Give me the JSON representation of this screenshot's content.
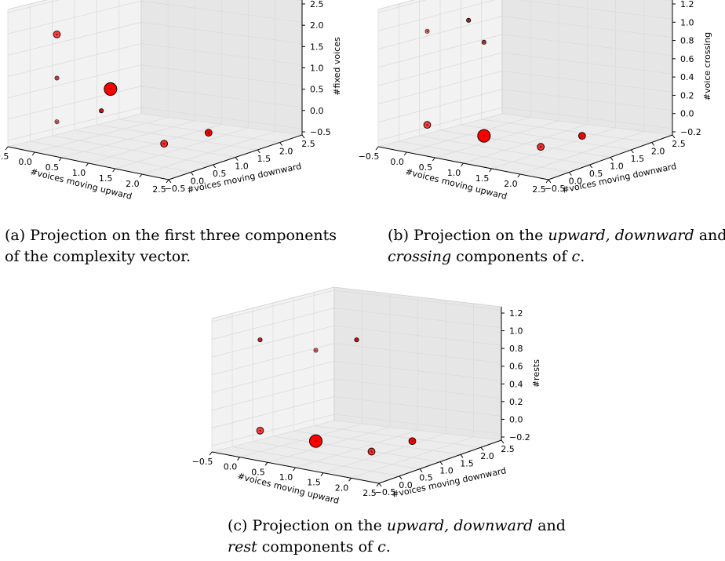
{
  "chart_data": [
    {
      "id": "a",
      "type": "scatter",
      "title": "",
      "xlabel": "#voices moving upward",
      "ylabel": "#voices moving downward",
      "zlabel": "#fixed voices",
      "x_ticks": [
        "−0.5",
        "0.0",
        "0.5",
        "1.0",
        "1.5",
        "2.0",
        "2.5"
      ],
      "y_ticks": [
        "−0.5",
        "0.0",
        "0.5",
        "1.0",
        "1.5",
        "2.0",
        "2.5"
      ],
      "z_ticks": [
        "2.5",
        "2.0",
        "1.5",
        "1.0",
        "0.5",
        "0.0",
        "−0.5"
      ],
      "zlim": [
        -0.5,
        2.5
      ],
      "grid": true,
      "points": [
        {
          "x": 0,
          "y": 0,
          "z": 2,
          "size": "medium",
          "alpha": 0.75
        },
        {
          "x": 1,
          "y": 0,
          "z": 1,
          "size": "large",
          "alpha": 0.45
        },
        {
          "x": 1,
          "y": 0,
          "z": 1,
          "size": "large",
          "alpha": 1.0
        },
        {
          "x": 0,
          "y": 0,
          "z": 1,
          "size": "small",
          "alpha": 0.6
        },
        {
          "x": 0,
          "y": 0,
          "z": 0,
          "size": "small",
          "alpha": 0.5
        },
        {
          "x": 0,
          "y": 1,
          "z": 0,
          "size": "small",
          "alpha": 0.9
        },
        {
          "x": 2,
          "y": 0,
          "z": 0,
          "size": "medium",
          "alpha": 0.35
        },
        {
          "x": 2,
          "y": 0,
          "z": 0,
          "size": "medium",
          "alpha": 0.7
        },
        {
          "x": 2,
          "y": 1,
          "z": 0,
          "size": "medium",
          "alpha": 1.0
        }
      ],
      "caption": [
        [
          {
            "t": "(a) Projection on the first three components",
            "i": false
          }
        ],
        [
          {
            "t": "of the complexity vector.",
            "i": false
          }
        ]
      ]
    },
    {
      "id": "b",
      "type": "scatter",
      "title": "",
      "xlabel": "#voices moving upward",
      "ylabel": "#voices moving downward",
      "zlabel": "#voice crossing",
      "x_ticks": [
        "−0.5",
        "0.0",
        "0.5",
        "1.0",
        "1.5",
        "2.0",
        "2.5"
      ],
      "y_ticks": [
        "−0.5",
        "0.0",
        "0.5",
        "1.0",
        "1.5",
        "2.0",
        "2.5"
      ],
      "z_ticks": [
        "1.2",
        "1.0",
        "0.8",
        "0.6",
        "0.4",
        "0.2",
        "0.0",
        "−0.2"
      ],
      "zlim": [
        -0.2,
        1.2
      ],
      "grid": true,
      "points": [
        {
          "x": 0,
          "y": 0,
          "z": 1,
          "size": "small",
          "alpha": 0.5
        },
        {
          "x": 0,
          "y": 1,
          "z": 1,
          "size": "small",
          "alpha": 0.9
        },
        {
          "x": 1,
          "y": 0,
          "z": 1,
          "size": "small",
          "alpha": 0.75
        },
        {
          "x": 0,
          "y": 0,
          "z": 0,
          "size": "medium",
          "alpha": 0.75
        },
        {
          "x": 1,
          "y": 0,
          "z": 0,
          "size": "large",
          "alpha": 0.45
        },
        {
          "x": 1,
          "y": 0,
          "z": 0,
          "size": "large",
          "alpha": 1.0
        },
        {
          "x": 2,
          "y": 0,
          "z": 0,
          "size": "medium",
          "alpha": 0.35
        },
        {
          "x": 2,
          "y": 0,
          "z": 0,
          "size": "medium",
          "alpha": 0.7
        },
        {
          "x": 2,
          "y": 1,
          "z": 0,
          "size": "medium",
          "alpha": 1.0
        }
      ],
      "caption": [
        [
          {
            "t": "(b) Projection on the ",
            "i": false
          },
          {
            "t": "upward, downward",
            "i": true
          },
          {
            "t": " and",
            "i": false
          }
        ],
        [
          {
            "t": "crossing",
            "i": true
          },
          {
            "t": " components of ",
            "i": false
          },
          {
            "t": "c",
            "i": true
          },
          {
            "t": ".",
            "i": false
          }
        ]
      ]
    },
    {
      "id": "c",
      "type": "scatter",
      "title": "",
      "xlabel": "#voices moving upward",
      "ylabel": "#voices moving downward",
      "zlabel": "#rests",
      "x_ticks": [
        "−0.5",
        "0.0",
        "0.5",
        "1.0",
        "1.5",
        "2.0",
        "2.5"
      ],
      "y_ticks": [
        "−0.5",
        "0.0",
        "0.5",
        "1.0",
        "1.5",
        "2.0",
        "2.5"
      ],
      "z_ticks": [
        "1.2",
        "1.0",
        "0.8",
        "0.6",
        "0.4",
        "0.2",
        "0.0",
        "−0.2"
      ],
      "zlim": [
        -0.2,
        1.2
      ],
      "grid": true,
      "points": [
        {
          "x": 0,
          "y": 0,
          "z": 1,
          "size": "small",
          "alpha": 0.75
        },
        {
          "x": 1,
          "y": 0,
          "z": 1,
          "size": "small",
          "alpha": 0.5
        },
        {
          "x": 1,
          "y": 1,
          "z": 1,
          "size": "small",
          "alpha": 0.9
        },
        {
          "x": 0,
          "y": 0,
          "z": 0,
          "size": "medium",
          "alpha": 0.75
        },
        {
          "x": 1,
          "y": 0,
          "z": 0,
          "size": "large",
          "alpha": 0.45
        },
        {
          "x": 1,
          "y": 0,
          "z": 0,
          "size": "large",
          "alpha": 1.0
        },
        {
          "x": 2,
          "y": 0,
          "z": 0,
          "size": "medium",
          "alpha": 0.35
        },
        {
          "x": 2,
          "y": 0,
          "z": 0,
          "size": "medium",
          "alpha": 0.7
        },
        {
          "x": 2,
          "y": 1,
          "z": 0,
          "size": "medium",
          "alpha": 1.0
        }
      ],
      "caption": [
        [
          {
            "t": "(c) Projection on the ",
            "i": false
          },
          {
            "t": "upward, downward",
            "i": true
          },
          {
            "t": " and",
            "i": false
          }
        ],
        [
          {
            "t": "rest",
            "i": true
          },
          {
            "t": " components of ",
            "i": false
          },
          {
            "t": "c",
            "i": true
          },
          {
            "t": ".",
            "i": false
          }
        ]
      ]
    }
  ],
  "colors": {
    "marker": "#ff0000",
    "marker_edge": "#000000",
    "pane_left": "#f2f2f2",
    "pane_right": "#e6e6e6",
    "pane_floor": "#ececec",
    "grid": "#dcdcdc"
  }
}
